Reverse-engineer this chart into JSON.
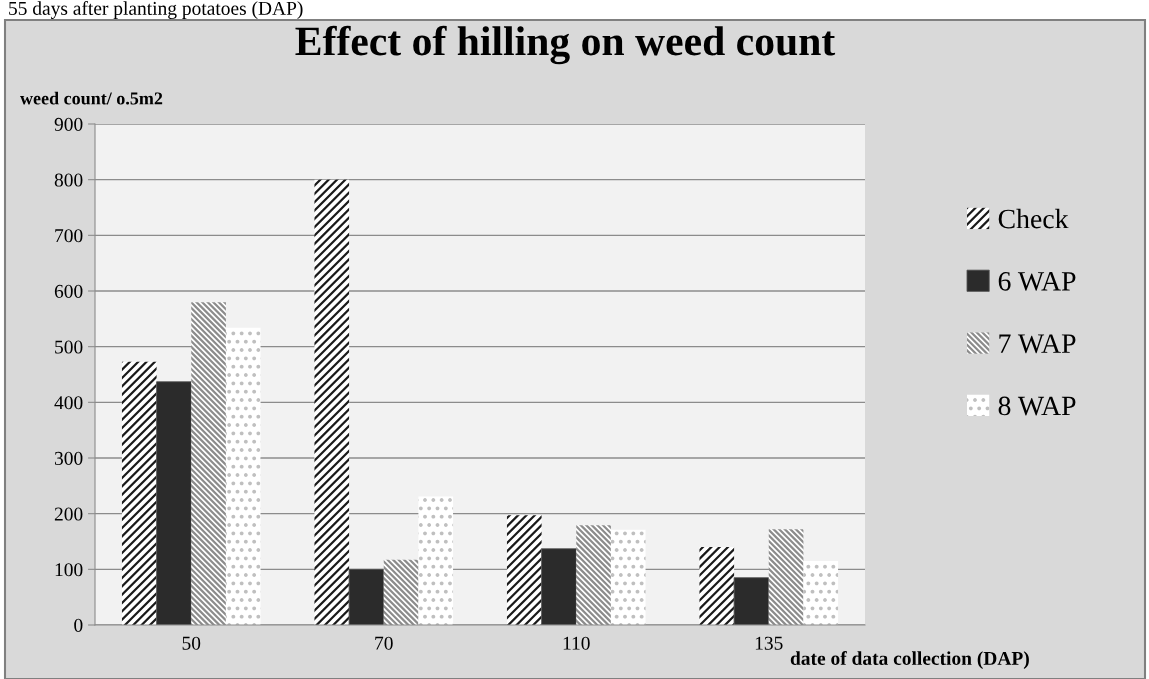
{
  "chart_data": {
    "type": "bar",
    "title": "Effect of hilling on weed count",
    "ylabel": "weed count/ o.5m2",
    "xlabel": "date of data collection (DAP)",
    "annotations": [
      "55 days after planting potatoes (DAP)"
    ],
    "categories": [
      "50",
      "70",
      "110",
      "135"
    ],
    "series": [
      {
        "name": "Check",
        "color": "#1a1a1a",
        "values": [
          473,
          800,
          197,
          140
        ]
      },
      {
        "name": "6 WAP",
        "color": "#2b2b2b",
        "values": [
          437,
          100,
          137,
          85
        ]
      },
      {
        "name": "7 WAP",
        "color": "#8c8c8c",
        "values": [
          580,
          117,
          179,
          172
        ]
      },
      {
        "name": "8 WAP",
        "color": "#bfbfbf",
        "values": [
          534,
          231,
          171,
          115
        ]
      }
    ],
    "ylim": [
      0,
      900
    ],
    "yticks": [
      0,
      100,
      200,
      300,
      400,
      500,
      600,
      700,
      800,
      900
    ],
    "grid": "y",
    "legend": "right"
  }
}
